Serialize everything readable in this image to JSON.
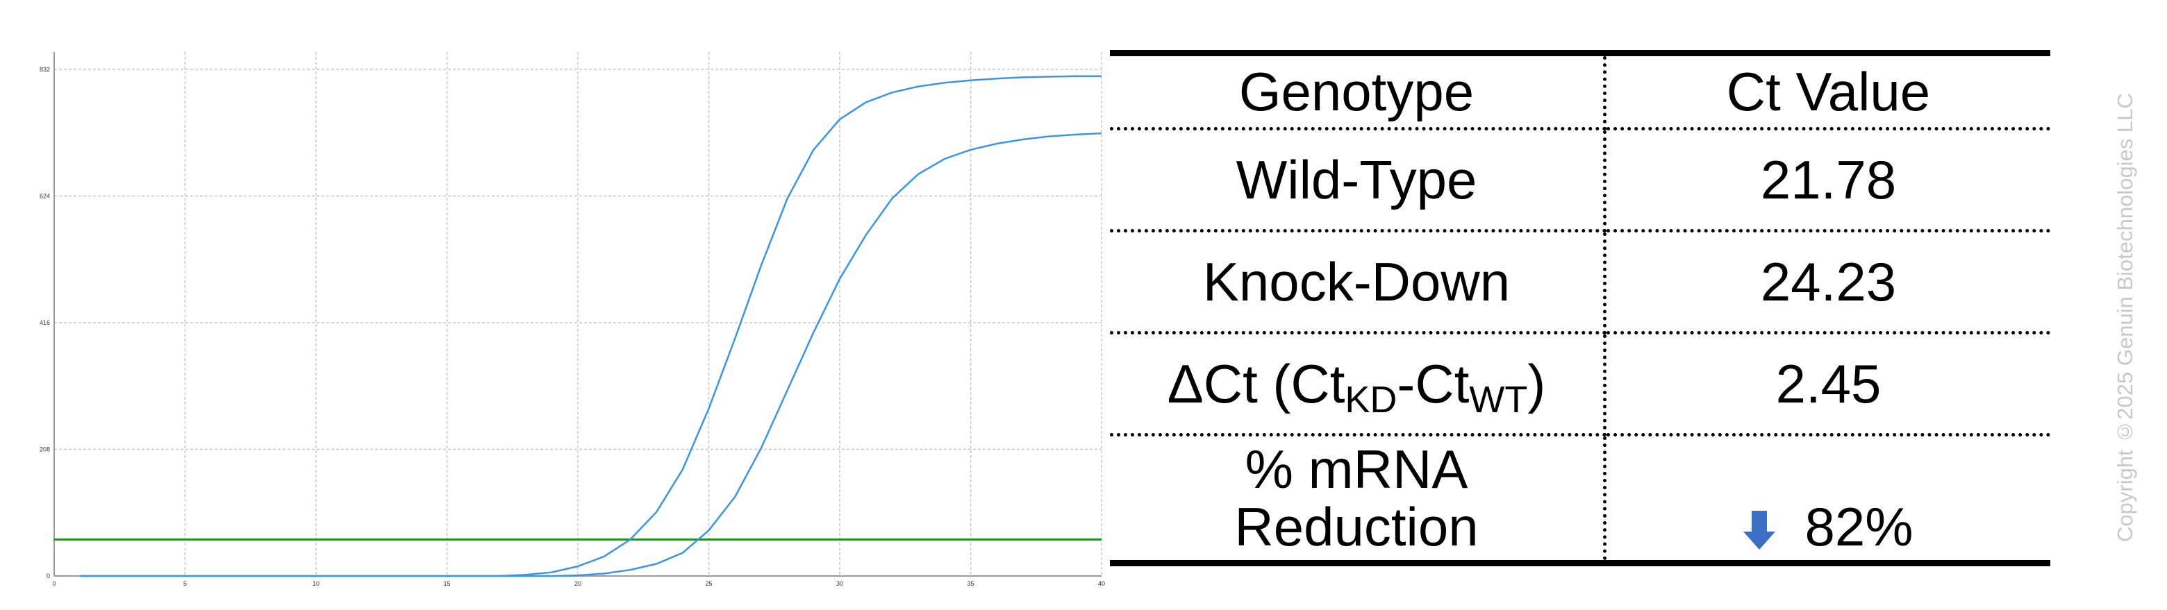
{
  "chart_data": {
    "type": "line",
    "title": "",
    "xlabel": "",
    "ylabel": "",
    "xlim": [
      0,
      40
    ],
    "ylim": [
      0,
      832
    ],
    "x_ticks": [
      0,
      5,
      10,
      15,
      20,
      25,
      30,
      35,
      40
    ],
    "y_ticks": [
      0,
      208,
      416,
      624,
      832
    ],
    "grid": true,
    "threshold": 60,
    "series": [
      {
        "x": [
          1,
          2,
          3,
          4,
          5,
          6,
          7,
          8,
          9,
          10,
          11,
          12,
          13,
          14,
          15,
          16,
          17,
          18,
          19,
          20,
          21,
          22,
          23,
          24,
          25,
          26,
          27,
          28,
          29,
          30,
          31,
          32,
          33,
          34,
          35,
          36,
          37,
          38,
          39,
          40
        ],
        "values": [
          0,
          0,
          0,
          0,
          0,
          0,
          0,
          0,
          0,
          0,
          0,
          0,
          0,
          0,
          0,
          0,
          0,
          2,
          6,
          16,
          32,
          60,
          105,
          175,
          275,
          390,
          510,
          620,
          700,
          750,
          778,
          794,
          804,
          810,
          814,
          817,
          819,
          820,
          821,
          821
        ]
      },
      {
        "x": [
          1,
          2,
          3,
          4,
          5,
          6,
          7,
          8,
          9,
          10,
          11,
          12,
          13,
          14,
          15,
          16,
          17,
          18,
          19,
          20,
          21,
          22,
          23,
          24,
          25,
          26,
          27,
          28,
          29,
          30,
          31,
          32,
          33,
          34,
          35,
          36,
          37,
          38,
          39,
          40
        ],
        "values": [
          0,
          0,
          0,
          0,
          0,
          0,
          0,
          0,
          0,
          0,
          0,
          0,
          0,
          0,
          0,
          0,
          0,
          0,
          0,
          1,
          4,
          10,
          20,
          38,
          75,
          130,
          210,
          305,
          400,
          488,
          560,
          620,
          660,
          685,
          700,
          710,
          717,
          722,
          725,
          727
        ]
      }
    ],
    "colors": {
      "curve": "#3a95e8",
      "threshold": "#1f8f1f",
      "grid": "#c8c8c8"
    }
  },
  "table": {
    "headers": [
      "Genotype",
      "Ct Value"
    ],
    "rows": [
      {
        "genotype": "Wild-Type",
        "ct": "21.78"
      },
      {
        "genotype": "Knock-Down",
        "ct": "24.23"
      }
    ],
    "delta": {
      "label_prefix": "ΔCt (Ct",
      "sub_kd": "KD",
      "label_mid": "-Ct",
      "sub_wt": "WT",
      "label_suffix": ")",
      "value": "2.45"
    },
    "reduction": {
      "label_line1": "% mRNA",
      "label_line2": "Reduction",
      "value": "82%",
      "arrow_icon": "down-arrow-icon",
      "arrow_color": "#3a6fc4"
    }
  },
  "copyright": "Copyright ©2025 Genuin Biotechnologies LLC"
}
